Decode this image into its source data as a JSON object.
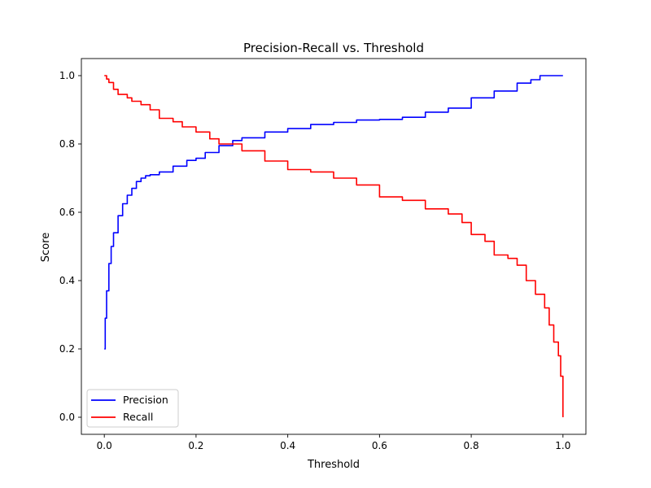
{
  "chart_data": {
    "type": "line",
    "title": "Precision-Recall vs. Threshold",
    "xlabel": "Threshold",
    "ylabel": "Score",
    "xlim": [
      -0.05,
      1.05
    ],
    "ylim": [
      -0.05,
      1.05
    ],
    "xticks": [
      0.0,
      0.2,
      0.4,
      0.6,
      0.8,
      1.0
    ],
    "xtick_labels": [
      "0.0",
      "0.2",
      "0.4",
      "0.6",
      "0.8",
      "1.0"
    ],
    "yticks": [
      0.0,
      0.2,
      0.4,
      0.6,
      0.8,
      1.0
    ],
    "ytick_labels": [
      "0.0",
      "0.2",
      "0.4",
      "0.6",
      "0.8",
      "1.0"
    ],
    "grid": false,
    "legend_position": "lower-left",
    "series": [
      {
        "name": "Precision",
        "color": "#0000ff",
        "x": [
          0.0,
          0.002,
          0.005,
          0.01,
          0.015,
          0.02,
          0.03,
          0.04,
          0.05,
          0.06,
          0.07,
          0.08,
          0.09,
          0.1,
          0.12,
          0.15,
          0.18,
          0.2,
          0.22,
          0.25,
          0.28,
          0.3,
          0.35,
          0.4,
          0.45,
          0.5,
          0.55,
          0.6,
          0.65,
          0.7,
          0.75,
          0.8,
          0.85,
          0.9,
          0.93,
          0.95,
          0.97,
          1.0
        ],
        "y": [
          0.2,
          0.29,
          0.37,
          0.45,
          0.5,
          0.54,
          0.59,
          0.625,
          0.65,
          0.67,
          0.69,
          0.7,
          0.707,
          0.71,
          0.718,
          0.735,
          0.752,
          0.758,
          0.775,
          0.795,
          0.81,
          0.818,
          0.835,
          0.845,
          0.857,
          0.863,
          0.87,
          0.872,
          0.878,
          0.893,
          0.905,
          0.935,
          0.955,
          0.978,
          0.988,
          1.0,
          1.0,
          1.0
        ]
      },
      {
        "name": "Recall",
        "color": "#ff0000",
        "x": [
          0.0,
          0.005,
          0.01,
          0.02,
          0.03,
          0.05,
          0.06,
          0.08,
          0.1,
          0.12,
          0.15,
          0.17,
          0.2,
          0.23,
          0.25,
          0.3,
          0.35,
          0.4,
          0.45,
          0.5,
          0.55,
          0.6,
          0.65,
          0.7,
          0.75,
          0.78,
          0.8,
          0.83,
          0.85,
          0.88,
          0.9,
          0.92,
          0.94,
          0.96,
          0.97,
          0.98,
          0.99,
          0.995,
          1.0
        ],
        "y": [
          1.0,
          0.99,
          0.98,
          0.96,
          0.945,
          0.935,
          0.925,
          0.915,
          0.9,
          0.875,
          0.865,
          0.85,
          0.835,
          0.815,
          0.8,
          0.78,
          0.75,
          0.725,
          0.718,
          0.7,
          0.68,
          0.645,
          0.635,
          0.61,
          0.595,
          0.57,
          0.535,
          0.515,
          0.475,
          0.465,
          0.445,
          0.4,
          0.36,
          0.32,
          0.27,
          0.22,
          0.18,
          0.12,
          0.0
        ]
      }
    ]
  }
}
